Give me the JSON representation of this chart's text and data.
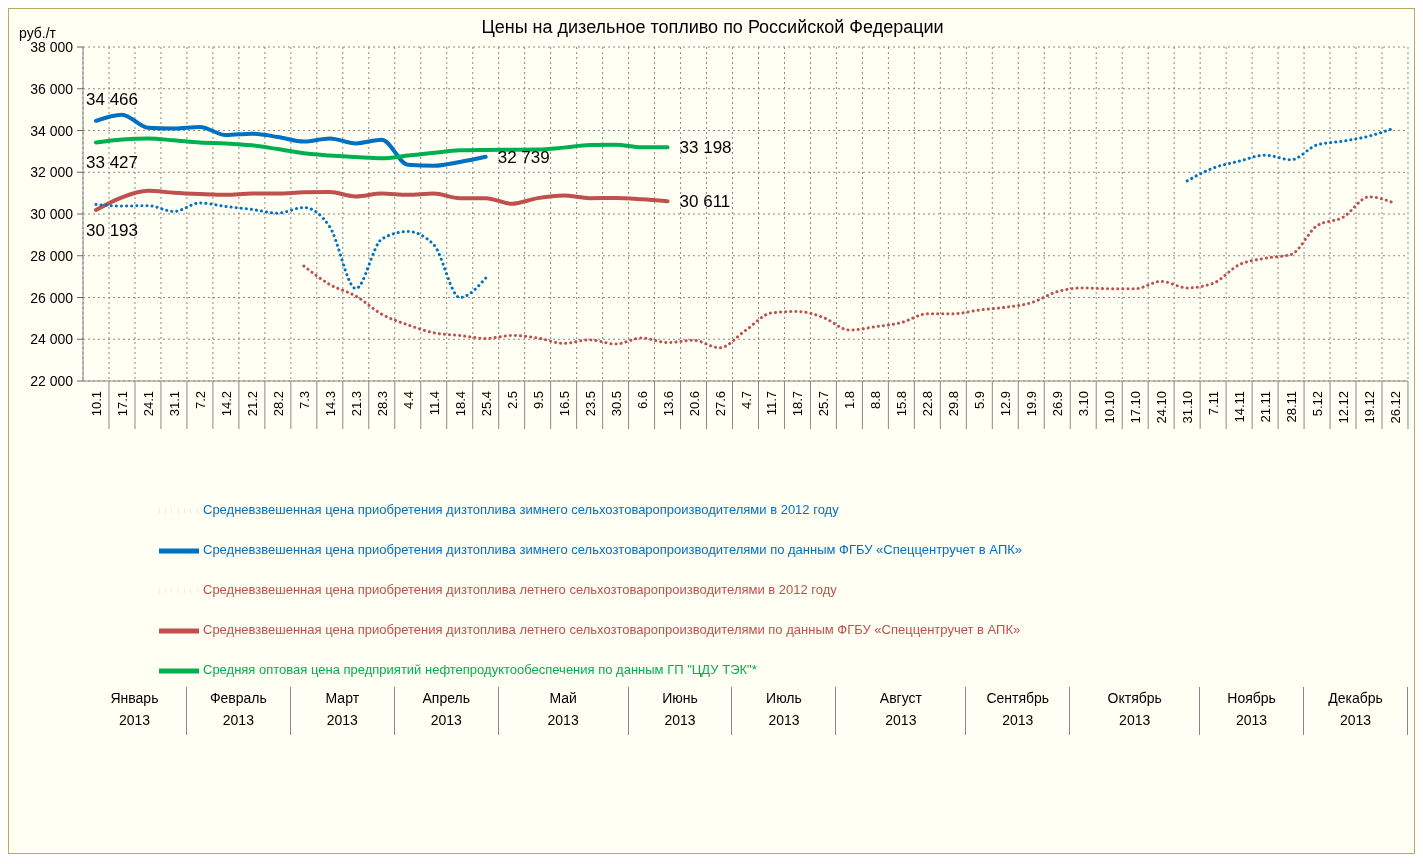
{
  "chart_data": {
    "type": "line",
    "title": "Цены на дизельное топливо по Российской Федерации",
    "ylabel": "руб./т",
    "categories": [
      "10.1",
      "17.1",
      "24.1",
      "31.1",
      "7.2",
      "14.2",
      "21.2",
      "28.2",
      "7.3",
      "14.3",
      "21.3",
      "28.3",
      "4.4",
      "11.4",
      "18.4",
      "25.4",
      "2.5",
      "9.5",
      "16.5",
      "23.5",
      "30.5",
      "6.6",
      "13.6",
      "20.6",
      "27.6",
      "4.7",
      "11.7",
      "18.7",
      "25.7",
      "1.8",
      "8.8",
      "15.8",
      "22.8",
      "29.8",
      "5.9",
      "12.9",
      "19.9",
      "26.9",
      "3.10",
      "10.10",
      "17.10",
      "24.10",
      "31.10",
      "7.11",
      "14.11",
      "21.11",
      "28.11",
      "5.12",
      "12.12",
      "19.12",
      "26.12"
    ],
    "series": [
      {
        "name": "Средневзвешенная цена приобретения дизтоплива зимнего сельхозтоваропроизводителями по данным ФГБУ «Спеццентручет в АПК»",
        "color": "#0070c0",
        "line_style": "solid",
        "values": [
          34466,
          34760,
          34130,
          34090,
          34170,
          33780,
          33850,
          33690,
          33470,
          33620,
          33380,
          33560,
          32360,
          32310,
          32490,
          32739,
          null,
          null,
          null,
          null,
          null,
          null,
          null,
          null,
          null,
          null,
          null,
          null,
          null,
          null,
          null,
          null,
          null,
          null,
          null,
          null,
          null,
          null,
          null,
          null,
          null,
          null,
          null,
          null,
          null,
          null,
          null,
          null,
          null,
          null,
          null
        ],
        "value_labels": [
          "34 466",
          null,
          null,
          null,
          null,
          null,
          null,
          null,
          null,
          null,
          null,
          null,
          null,
          null,
          null,
          "32 739",
          null,
          null,
          null,
          null,
          null,
          null,
          null,
          null,
          null,
          null,
          null,
          null,
          null,
          null,
          null,
          null,
          null,
          null,
          null,
          null,
          null,
          null,
          null,
          null,
          null,
          null,
          null,
          null,
          null,
          null,
          null,
          null,
          null,
          null,
          null
        ]
      },
      {
        "name": "Средневзвешенная цена приобретения дизтоплива летнего сельхозтоваропроизводителями по данным ФГБУ «Спеццентручет в АПК»",
        "color": "#c0504d",
        "line_style": "solid",
        "values": [
          30193,
          30800,
          31110,
          31020,
          30960,
          30920,
          30980,
          30980,
          31040,
          31050,
          30840,
          30980,
          30920,
          30980,
          30760,
          30760,
          30490,
          30760,
          30890,
          30760,
          30770,
          30710,
          30611,
          null,
          null,
          null,
          null,
          null,
          null,
          null,
          null,
          null,
          null,
          null,
          null,
          null,
          null,
          null,
          null,
          null,
          null,
          null,
          null,
          null,
          null,
          null,
          null,
          null,
          null,
          null,
          null
        ],
        "value_labels": [
          "30 193",
          null,
          null,
          null,
          null,
          null,
          null,
          null,
          null,
          null,
          null,
          null,
          null,
          null,
          null,
          null,
          null,
          null,
          null,
          null,
          null,
          null,
          "30 611",
          null,
          null,
          null,
          null,
          null,
          null,
          null,
          null,
          null,
          null,
          null,
          null,
          null,
          null,
          null,
          null,
          null,
          null,
          null,
          null,
          null,
          null,
          null,
          null,
          null,
          null,
          null,
          null
        ]
      },
      {
        "name": "Средняя оптовая цена предприятий нефтепродуктообеспечения по данным ГП \"ЦДУ ТЭК\"*",
        "color": "#00b050",
        "line_style": "solid",
        "values": [
          33427,
          33570,
          33620,
          33530,
          33420,
          33380,
          33290,
          33110,
          32910,
          32800,
          32730,
          32670,
          32800,
          32930,
          33050,
          33070,
          33080,
          33090,
          33180,
          33300,
          33320,
          33200,
          33198,
          null,
          null,
          null,
          null,
          null,
          null,
          null,
          null,
          null,
          null,
          null,
          null,
          null,
          null,
          null,
          null,
          null,
          null,
          null,
          null,
          null,
          null,
          null,
          null,
          null,
          null,
          null,
          null
        ],
        "value_labels": [
          "33 427",
          null,
          null,
          null,
          null,
          null,
          null,
          null,
          null,
          null,
          null,
          null,
          null,
          null,
          null,
          null,
          null,
          null,
          null,
          null,
          null,
          null,
          "33 198",
          null,
          null,
          null,
          null,
          null,
          null,
          null,
          null,
          null,
          null,
          null,
          null,
          null,
          null,
          null,
          null,
          null,
          null,
          null,
          null,
          null,
          null,
          null,
          null,
          null,
          null,
          null,
          null
        ]
      },
      {
        "name": "Средневзвешенная цена приобретения дизтоплива зимнего сельхозтоваропроизводителями в 2012 году",
        "color": "#0070c0",
        "line_style": "dotted",
        "values": [
          30460,
          30380,
          30400,
          30120,
          30530,
          30360,
          30220,
          30040,
          30310,
          29380,
          26430,
          28800,
          29160,
          28530,
          26000,
          26930,
          null,
          null,
          null,
          null,
          null,
          null,
          null,
          null,
          null,
          null,
          null,
          null,
          null,
          null,
          null,
          null,
          null,
          null,
          null,
          null,
          null,
          null,
          null,
          null,
          null,
          null,
          31590,
          32200,
          32530,
          32820,
          32600,
          33310,
          33490,
          33730,
          34130
        ]
      },
      {
        "name": "Средневзвешенная цена приобретения дизтоплива летнего сельхозтоваропроизводителями в 2012 году",
        "color": "#c0504d",
        "line_style": "dotted",
        "values": [
          null,
          null,
          null,
          null,
          null,
          null,
          null,
          null,
          27510,
          26620,
          26070,
          25200,
          24690,
          24310,
          24180,
          24040,
          24180,
          24060,
          23800,
          23970,
          23770,
          24060,
          23840,
          23950,
          23590,
          24420,
          25260,
          25330,
          25040,
          24440,
          24600,
          24800,
          25220,
          25220,
          25400,
          25530,
          25750,
          26280,
          26460,
          26420,
          26420,
          26770,
          26460,
          26680,
          27570,
          27880,
          28060,
          29440,
          29840,
          30820,
          30510
        ]
      }
    ],
    "ylim": [
      22000,
      38000
    ],
    "yticks": [
      {
        "value": 22000,
        "label": "22 000"
      },
      {
        "value": 24000,
        "label": "24 000"
      },
      {
        "value": 26000,
        "label": "26 000"
      },
      {
        "value": 28000,
        "label": "28 000"
      },
      {
        "value": 30000,
        "label": "30 000"
      },
      {
        "value": 32000,
        "label": "32 000"
      },
      {
        "value": 34000,
        "label": "34 000"
      },
      {
        "value": 36000,
        "label": "36 000"
      },
      {
        "value": 38000,
        "label": "38 000"
      }
    ],
    "annotations": [
      "Январь\n2013",
      "Февраль\n2013",
      "Март\n2013",
      "Апрель\n2013",
      "Май\n2013",
      "Июнь\n2013",
      "Июль\n2013",
      "Август\n2013",
      "Сентябрь\n2013",
      "Октябрь\n2013",
      "Ноябрь\n2013",
      "Декабрь\n2013"
    ],
    "grid": true,
    "legend": "bottom",
    "marker": "none"
  }
}
